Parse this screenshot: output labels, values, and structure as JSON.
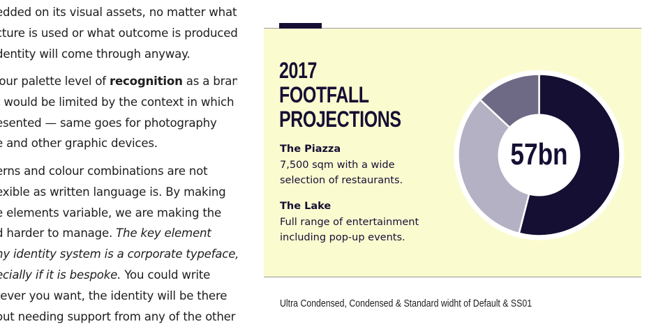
{
  "body_text": {
    "p1": [
      "edded on its visual assets, no matter what",
      "cture is used or what outcome is produced,",
      "dentity will come through anyway."
    ],
    "p2": {
      "l1_pre": "lour palette level of ",
      "l1_bold": "recognition",
      "l1_post": " as a brand",
      "l2": "t would be limited by the context in which",
      "l3": "esented — same goes for photography",
      "l4": "e and other graphic devices."
    },
    "p3": {
      "l1": "erns and colour combinations are not",
      "l2": "exible as written language is. By making",
      "l3": "e elements variable, we are making the",
      "l4_pre": "d harder to manage. ",
      "l4_italic": "The key element",
      "l5_italic": "ny identity system is a corporate typeface,",
      "l6_italic": "ecially if it is bespoke.",
      "l6_post": " You could write",
      "l7": "tever you want, the identity will be there",
      "l8": "out needing support from any of the other"
    }
  },
  "card": {
    "heading": [
      "2017",
      "FOOTFALL",
      "PROJECTIONS"
    ],
    "items": [
      {
        "title": "The Piazza",
        "desc": [
          "7,500 sqm with a wide",
          "selection of restaurants."
        ]
      },
      {
        "title": "The Lake",
        "desc": [
          "Full range of entertainment",
          "including pop-up events."
        ]
      }
    ],
    "colors": {
      "background": "#fbfbd0",
      "navy": "#150f33",
      "light": "#b3b1c3",
      "mid": "#6e6985"
    }
  },
  "chart_data": {
    "type": "pie",
    "center_label": "57bn",
    "values": [
      54,
      33,
      13
    ],
    "colors": [
      "#150f33",
      "#b3b1c3",
      "#6e6985"
    ],
    "donut": true
  },
  "footnote": "Ultra Condensed, Condensed & Standard widht of Default & SS01"
}
